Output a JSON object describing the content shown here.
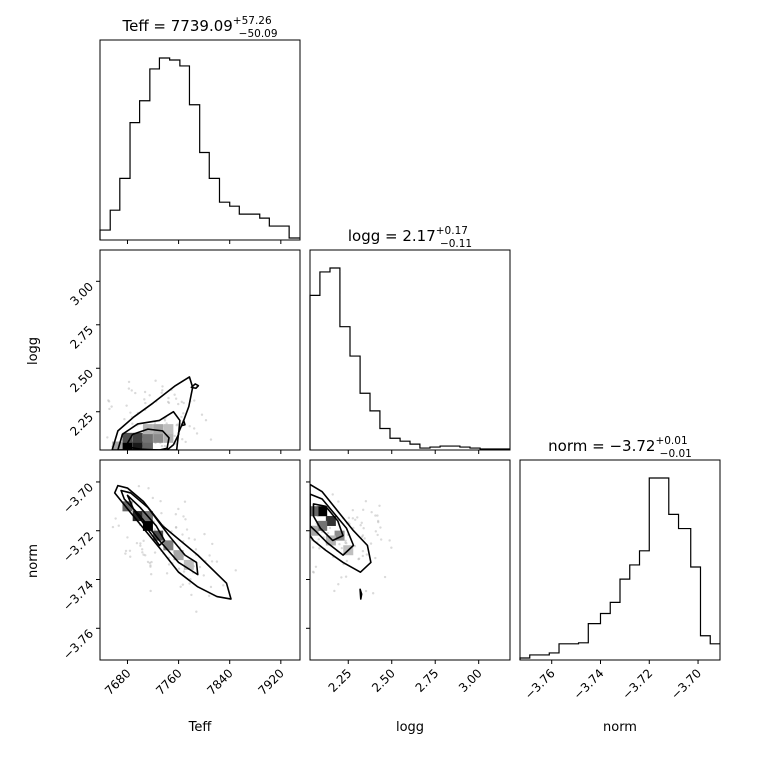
{
  "chart_data": {
    "type": "corner",
    "parameters": [
      "Teff",
      "logg",
      "norm"
    ],
    "titles": [
      {
        "param": "Teff",
        "label": "Teff = 7739.09",
        "plus": "+57.26",
        "minus": "−50.09"
      },
      {
        "param": "logg",
        "label": "logg = 2.17",
        "plus": "+0.17",
        "minus": "−0.11"
      },
      {
        "param": "norm",
        "label": "norm = −3.72",
        "plus": "+0.01",
        "minus": "−0.01"
      }
    ],
    "axes": {
      "Teff": {
        "xlabel": "Teff",
        "range": [
          7637,
          7950
        ],
        "ticks": [
          7680,
          7760,
          7840,
          7920
        ],
        "tick_labels": [
          "7680",
          "7760",
          "7840",
          "7920"
        ]
      },
      "logg": {
        "xlabel": "logg",
        "ylabel": "logg",
        "range": [
          2.03,
          3.18
        ],
        "ticks": [
          2.25,
          2.5,
          2.75,
          3.0
        ],
        "tick_labels": [
          "2.25",
          "2.50",
          "2.75",
          "3.00"
        ]
      },
      "norm": {
        "xlabel": "norm",
        "ylabel": "norm",
        "range": [
          -3.773,
          -3.691
        ],
        "ticks": [
          -3.76,
          -3.74,
          -3.72,
          -3.7
        ],
        "tick_labels": [
          "−3.76",
          "−3.74",
          "−3.72",
          "−3.70"
        ]
      }
    },
    "histograms": [
      {
        "param": "Teff",
        "bin_edges": [
          7637,
          7653,
          7668,
          7684,
          7699,
          7715,
          7730,
          7746,
          7762,
          7777,
          7793,
          7808,
          7824,
          7840,
          7855,
          7871,
          7887,
          7902,
          7918,
          7933,
          7950
        ],
        "counts": [
          10,
          30,
          62,
          118,
          140,
          172,
          183,
          181,
          175,
          136,
          88,
          62,
          38,
          34,
          26,
          26,
          22,
          14,
          14,
          2
        ]
      },
      {
        "param": "logg",
        "bin_edges": [
          2.03,
          2.087,
          2.145,
          2.202,
          2.26,
          2.318,
          2.375,
          2.432,
          2.49,
          2.548,
          2.605,
          2.662,
          2.72,
          2.778,
          2.835,
          2.892,
          2.95,
          3.008,
          3.065,
          3.122,
          3.18
        ],
        "counts": [
          158,
          182,
          186,
          126,
          96,
          58,
          40,
          22,
          12,
          9,
          6,
          2,
          3,
          4,
          4,
          3,
          2,
          1,
          1,
          1
        ]
      },
      {
        "param": "norm",
        "bin_edges": [
          -3.773,
          -3.769,
          -3.765,
          -3.761,
          -3.757,
          -3.753,
          -3.749,
          -3.745,
          -3.74,
          -3.736,
          -3.732,
          -3.728,
          -3.724,
          -3.72,
          -3.716,
          -3.712,
          -3.708,
          -3.703,
          -3.699,
          -3.695,
          -3.691
        ],
        "counts": [
          2,
          5,
          5,
          7,
          16,
          16,
          17,
          36,
          46,
          57,
          80,
          94,
          108,
          180,
          180,
          144,
          130,
          92,
          24,
          16
        ]
      }
    ],
    "pairs": [
      {
        "x": "Teff",
        "y": "logg",
        "contours": [
          {
            "level": "outer",
            "points": [
              [
                7656,
                2.03
              ],
              [
                7665,
                2.14
              ],
              [
                7690,
                2.22
              ],
              [
                7720,
                2.3
              ],
              [
                7755,
                2.4
              ],
              [
                7777,
                2.45
              ],
              [
                7782,
                2.39
              ],
              [
                7776,
                2.28
              ],
              [
                7768,
                2.2
              ],
              [
                7760,
                2.13
              ],
              [
                7757,
                2.03
              ]
            ]
          },
          {
            "level": "middle",
            "points": [
              [
                7665,
                2.03
              ],
              [
                7672,
                2.12
              ],
              [
                7696,
                2.18
              ],
              [
                7730,
                2.2
              ],
              [
                7752,
                2.25
              ],
              [
                7762,
                2.2
              ],
              [
                7760,
                2.12
              ],
              [
                7752,
                2.06
              ],
              [
                7742,
                2.03
              ]
            ]
          },
          {
            "level": "inner",
            "points": [
              [
                7677,
                2.05
              ],
              [
                7688,
                2.12
              ],
              [
                7712,
                2.15
              ],
              [
                7735,
                2.14
              ],
              [
                7745,
                2.1
              ],
              [
                7742,
                2.04
              ],
              [
                7730,
                2.03
              ],
              [
                7700,
                2.035
              ]
            ]
          },
          {
            "level": "island",
            "points": [
              [
                7780,
                2.39
              ],
              [
                7786,
                2.41
              ],
              [
                7791,
                2.4
              ],
              [
                7787,
                2.385
              ]
            ]
          },
          {
            "level": "island",
            "points": [
              [
                7765,
                2.17
              ],
              [
                7768,
                2.2
              ],
              [
                7770,
                2.175
              ]
            ]
          }
        ],
        "density_cells": [
          {
            "x": 7680,
            "y": 2.05,
            "d": 1.0
          },
          {
            "x": 7696,
            "y": 2.05,
            "d": 0.9
          },
          {
            "x": 7712,
            "y": 2.05,
            "d": 0.6
          },
          {
            "x": 7680,
            "y": 2.1,
            "d": 0.7
          },
          {
            "x": 7696,
            "y": 2.1,
            "d": 0.75
          },
          {
            "x": 7712,
            "y": 2.1,
            "d": 0.55
          },
          {
            "x": 7728,
            "y": 2.1,
            "d": 0.45
          },
          {
            "x": 7744,
            "y": 2.1,
            "d": 0.3
          },
          {
            "x": 7728,
            "y": 2.15,
            "d": 0.35
          },
          {
            "x": 7744,
            "y": 2.15,
            "d": 0.25
          },
          {
            "x": 7712,
            "y": 2.15,
            "d": 0.3
          },
          {
            "x": 7664,
            "y": 2.05,
            "d": 0.35
          }
        ]
      },
      {
        "x": "Teff",
        "y": "norm",
        "contours": [
          {
            "level": "outer",
            "points": [
              [
                7660,
                -3.7045
              ],
              [
                7665,
                -3.7015
              ],
              [
                7680,
                -3.7025
              ],
              [
                7705,
                -3.708
              ],
              [
                7735,
                -3.718
              ],
              [
                7790,
                -3.73
              ],
              [
                7835,
                -3.7415
              ],
              [
                7842,
                -3.748
              ],
              [
                7820,
                -3.747
              ],
              [
                7790,
                -3.743
              ],
              [
                7760,
                -3.737
              ],
              [
                7730,
                -3.727
              ],
              [
                7705,
                -3.719
              ],
              [
                7680,
                -3.711
              ]
            ]
          },
          {
            "level": "middle",
            "points": [
              [
                7670,
                -3.7035
              ],
              [
                7685,
                -3.7045
              ],
              [
                7712,
                -3.7105
              ],
              [
                7745,
                -3.722
              ],
              [
                7770,
                -3.73
              ],
              [
                7788,
                -3.733
              ],
              [
                7790,
                -3.738
              ],
              [
                7760,
                -3.733
              ],
              [
                7730,
                -3.724
              ],
              [
                7700,
                -3.714
              ],
              [
                7675,
                -3.707
              ]
            ]
          },
          {
            "level": "inner",
            "points": [
              [
                7680,
                -3.7055
              ],
              [
                7700,
                -3.7105
              ],
              [
                7725,
                -3.718
              ],
              [
                7738,
                -3.724
              ],
              [
                7730,
                -3.726
              ],
              [
                7708,
                -3.718
              ],
              [
                7690,
                -3.7115
              ]
            ]
          }
        ],
        "density_cells": [
          {
            "x": 7696,
            "y": -3.714,
            "d": 0.85
          },
          {
            "x": 7712,
            "y": -3.718,
            "d": 1.0
          },
          {
            "x": 7728,
            "y": -3.722,
            "d": 0.7
          },
          {
            "x": 7680,
            "y": -3.71,
            "d": 0.6
          },
          {
            "x": 7744,
            "y": -3.726,
            "d": 0.5
          },
          {
            "x": 7760,
            "y": -3.73,
            "d": 0.35
          },
          {
            "x": 7776,
            "y": -3.734,
            "d": 0.25
          },
          {
            "x": 7712,
            "y": -3.714,
            "d": 0.55
          }
        ]
      },
      {
        "x": "logg",
        "y": "norm",
        "contours": [
          {
            "level": "outer",
            "points": [
              [
                2.03,
                -3.701
              ],
              [
                2.1,
                -3.704
              ],
              [
                2.19,
                -3.712
              ],
              [
                2.28,
                -3.72
              ],
              [
                2.36,
                -3.726
              ],
              [
                2.38,
                -3.733
              ],
              [
                2.32,
                -3.737
              ],
              [
                2.22,
                -3.733
              ],
              [
                2.12,
                -3.728
              ],
              [
                2.05,
                -3.724
              ],
              [
                2.03,
                -3.722
              ]
            ]
          },
          {
            "level": "middle",
            "points": [
              [
                2.03,
                -3.705
              ],
              [
                2.1,
                -3.707
              ],
              [
                2.17,
                -3.713
              ],
              [
                2.24,
                -3.719
              ],
              [
                2.28,
                -3.726
              ],
              [
                2.22,
                -3.73
              ],
              [
                2.13,
                -3.725
              ],
              [
                2.06,
                -3.72
              ],
              [
                2.03,
                -3.718
              ]
            ]
          },
          {
            "level": "inner",
            "points": [
              [
                2.05,
                -3.709
              ],
              [
                2.12,
                -3.71
              ],
              [
                2.19,
                -3.716
              ],
              [
                2.22,
                -3.722
              ],
              [
                2.16,
                -3.724
              ],
              [
                2.09,
                -3.719
              ],
              [
                2.05,
                -3.714
              ]
            ]
          },
          {
            "level": "island",
            "points": [
              [
                2.318,
                -3.744
              ],
              [
                2.327,
                -3.746
              ],
              [
                2.322,
                -3.748
              ]
            ]
          }
        ],
        "density_cells": [
          {
            "x": 2.1,
            "y": -3.712,
            "d": 1.0
          },
          {
            "x": 2.15,
            "y": -3.716,
            "d": 0.8
          },
          {
            "x": 2.05,
            "y": -3.712,
            "d": 0.6
          },
          {
            "x": 2.1,
            "y": -3.718,
            "d": 0.55
          },
          {
            "x": 2.2,
            "y": -3.722,
            "d": 0.45
          },
          {
            "x": 2.05,
            "y": -3.72,
            "d": 0.35
          },
          {
            "x": 2.15,
            "y": -3.724,
            "d": 0.3
          },
          {
            "x": 2.25,
            "y": -3.728,
            "d": 0.25
          }
        ]
      }
    ]
  }
}
